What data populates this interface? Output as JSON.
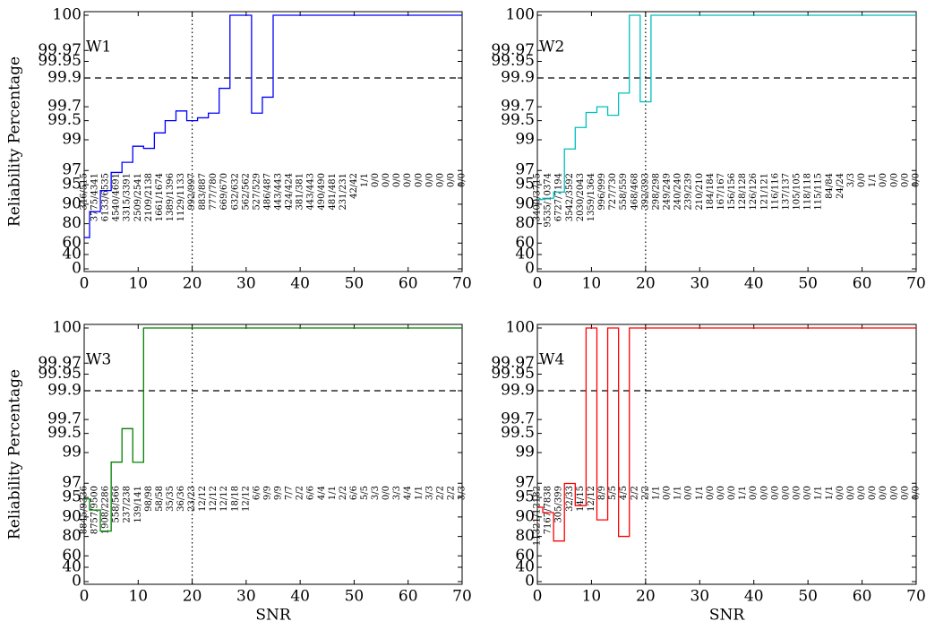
{
  "chart_data": [
    {
      "type": "line",
      "step": "mid",
      "title": "W1",
      "ylabel": "Reliability Percentage",
      "color": "#0000ff",
      "x": [
        0,
        2,
        4,
        6,
        8,
        10,
        12,
        14,
        16,
        18,
        20,
        22,
        24,
        26,
        28,
        30,
        32,
        34,
        36,
        38,
        40,
        42,
        44,
        46,
        48,
        50,
        52,
        54,
        56,
        58,
        60,
        62,
        64,
        66,
        68,
        70
      ],
      "values": [
        67.18,
        86.96,
        93.85,
        96.78,
        97.76,
        98.74,
        98.64,
        99.22,
        99.5,
        99.65,
        99.5,
        99.55,
        99.62,
        99.85,
        100,
        100,
        99.62,
        99.79,
        100,
        100,
        100,
        100,
        100,
        100,
        100,
        100,
        100,
        100,
        100,
        100,
        100,
        100,
        100,
        100,
        100,
        100
      ],
      "value_labels": [
        "346/515",
        "3775/4341",
        "6133/6535",
        "4540/4691",
        "3315/3391",
        "2509/2541",
        "2109/2138",
        "1661/1674",
        "1389/1396",
        "1129/1133",
        "992/997",
        "883/887",
        "777/780",
        "669/670",
        "632/632",
        "562/562",
        "527/529",
        "486/487",
        "443/443",
        "424/424",
        "381/381",
        "443/443",
        "490/490",
        "481/481",
        "231/231",
        "42/42",
        "1/1",
        "0/0",
        "0/0",
        "0/0",
        "0/0",
        "0/0",
        "0/0",
        "0/0",
        "0/0",
        "0/0"
      ],
      "xlim": [
        0,
        70
      ],
      "xticks": [
        0,
        10,
        20,
        30,
        40,
        50,
        60,
        70
      ],
      "ylim": [
        0,
        100
      ],
      "yticks": [
        0,
        40,
        60,
        80,
        90,
        95,
        97,
        99,
        99.5,
        99.7,
        99.9,
        99.95,
        99.97,
        100
      ],
      "hline": 99.9,
      "vline": 20
    },
    {
      "type": "line",
      "step": "mid",
      "title": "W2",
      "color": "#00bfbf",
      "x": [
        0,
        2,
        4,
        6,
        8,
        10,
        12,
        14,
        16,
        18,
        20,
        22,
        24,
        26,
        28,
        30,
        32,
        34,
        36,
        38,
        40,
        42,
        44,
        46,
        48,
        50,
        52,
        54,
        56,
        58,
        60,
        62,
        64,
        66,
        68,
        70
      ],
      "values": [
        91.52,
        91.91,
        93.51,
        98.61,
        99.36,
        99.63,
        99.7,
        99.59,
        99.82,
        100,
        99.75,
        100,
        100,
        100,
        100,
        100,
        100,
        100,
        100,
        100,
        100,
        100,
        100,
        100,
        100,
        100,
        100,
        100,
        100,
        100,
        100,
        100,
        100,
        100,
        100,
        100
      ],
      "value_labels": [
        "3400/3715",
        "9535/10374",
        "6727/7194",
        "3542/3592",
        "2030/2043",
        "1359/1364",
        "996/999",
        "727/730",
        "558/559",
        "468/468",
        "392/393",
        "298/298",
        "249/249",
        "240/240",
        "239/239",
        "210/210",
        "184/184",
        "167/167",
        "156/156",
        "128/128",
        "126/126",
        "121/121",
        "116/116",
        "137/137",
        "105/105",
        "118/118",
        "115/115",
        "84/84",
        "24/24",
        "3/3",
        "0/0",
        "1/1",
        "0/0",
        "0/0",
        "0/0",
        "0/0"
      ],
      "xlim": [
        0,
        70
      ],
      "xticks": [
        0,
        10,
        20,
        30,
        40,
        50,
        60,
        70
      ],
      "ylim": [
        0,
        100
      ],
      "yticks": [
        0,
        40,
        60,
        80,
        90,
        95,
        97,
        99,
        99.5,
        99.7,
        99.9,
        99.95,
        99.97,
        100
      ],
      "hline": 99.9,
      "vline": 20
    },
    {
      "type": "line",
      "step": "mid",
      "title": "W3",
      "ylabel": "Reliability Percentage",
      "xlabel": "SNR",
      "color": "#008000",
      "x": [
        0,
        2,
        4,
        6,
        8,
        10,
        12,
        14,
        16,
        18,
        20,
        22,
        24,
        26,
        28,
        30,
        32,
        34,
        36,
        38,
        40,
        42,
        44,
        46,
        48,
        50,
        52,
        54,
        56,
        58,
        60,
        62,
        64,
        66,
        68,
        70
      ],
      "values": [
        94.74,
        92.18,
        83.46,
        98.59,
        99.58,
        98.58,
        100,
        100,
        100,
        100,
        100,
        100,
        100,
        100,
        100,
        100,
        100,
        100,
        100,
        100,
        100,
        100,
        100,
        100,
        100,
        100,
        100,
        100,
        100,
        100,
        100,
        100,
        100,
        100,
        100,
        100
      ],
      "value_labels": [
        "8845/9336",
        "8757/9500",
        "1908/2286",
        "558/566",
        "237/238",
        "139/141",
        "98/98",
        "58/58",
        "35/35",
        "36/36",
        "23/23",
        "12/12",
        "12/12",
        "12/12",
        "18/18",
        "12/12",
        "6/6",
        "9/9",
        "9/9",
        "7/7",
        "2/2",
        "6/6",
        "4/4",
        "1/1",
        "2/2",
        "6/6",
        "5/5",
        "3/3",
        "0/0",
        "3/3",
        "4/4",
        "1/1",
        "3/3",
        "2/2",
        "2/2",
        "3/3"
      ],
      "xlim": [
        0,
        70
      ],
      "xticks": [
        0,
        10,
        20,
        30,
        40,
        50,
        60,
        70
      ],
      "ylim": [
        0,
        100
      ],
      "yticks": [
        0,
        40,
        60,
        80,
        90,
        95,
        97,
        99,
        99.5,
        99.7,
        99.9,
        99.95,
        99.97,
        100
      ],
      "hline": 99.9,
      "vline": 20
    },
    {
      "type": "line",
      "step": "mid",
      "title": "W4",
      "xlabel": "SNR",
      "color": "#ff0000",
      "x": [
        0,
        2,
        4,
        6,
        8,
        10,
        12,
        14,
        16,
        18,
        20,
        22,
        24,
        26,
        28,
        30,
        32,
        34,
        36,
        38,
        40,
        42,
        44,
        46,
        48,
        50,
        52,
        54,
        56,
        58,
        60,
        62,
        64,
        66,
        68,
        70
      ],
      "values": [
        92.93,
        91.44,
        76.44,
        96.97,
        93.33,
        100,
        88.89,
        100,
        80,
        100,
        100,
        100,
        100,
        100,
        100,
        100,
        100,
        100,
        100,
        100,
        100,
        100,
        100,
        100,
        100,
        100,
        100,
        100,
        100,
        100,
        100,
        100,
        100,
        100,
        100,
        100
      ],
      "value_labels": [
        "11321/12182",
        "7167/7838",
        "305/399",
        "32/33",
        "14/15",
        "12/12",
        "8/9",
        "5/5",
        "4/5",
        "2/2",
        "2/2",
        "1/1",
        "0/0",
        "1/1",
        "0/0",
        "1/1",
        "0/0",
        "0/0",
        "0/0",
        "1/1",
        "0/0",
        "0/0",
        "0/0",
        "0/0",
        "0/0",
        "0/0",
        "1/1",
        "1/1",
        "0/0",
        "0/0",
        "0/0",
        "0/0",
        "0/0",
        "0/0",
        "0/0",
        "0/0"
      ],
      "xlim": [
        0,
        70
      ],
      "xticks": [
        0,
        10,
        20,
        30,
        40,
        50,
        60,
        70
      ],
      "ylim": [
        0,
        100
      ],
      "yticks": [
        0,
        40,
        60,
        80,
        90,
        95,
        97,
        99,
        99.5,
        99.7,
        99.9,
        99.95,
        99.97,
        100
      ],
      "hline": 99.9,
      "vline": 20
    }
  ]
}
